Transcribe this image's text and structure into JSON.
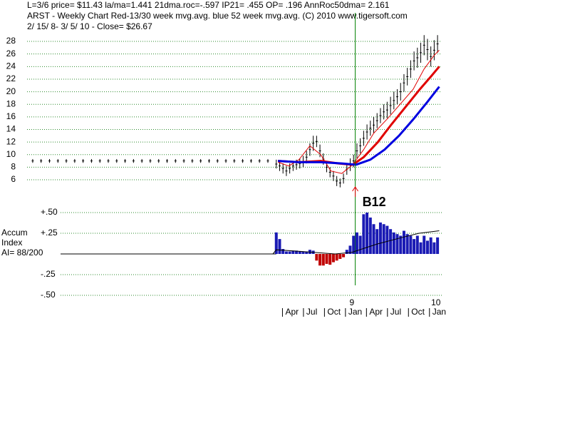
{
  "chart_data": [
    {
      "type": "ohlc",
      "header_lines": [
        "L=3/6  price= $11.43  la/ma=1.441 21dma.roc=-.597 IP21= .455 OP= .196 AnnRoc50dma= 2.161",
        "ARST  - Weekly Chart  Red-13/30 week mvg.avg.  blue 52 week mvg.avg.  (C) 2010 www.tigersoft.com",
        " 2/ 15/ 8- 3/ 5/ 10 -      Close= $26.67"
      ],
      "xlim": [
        2005.15,
        2010.07
      ],
      "ylim": [
        4,
        30
      ],
      "yticks": [
        6,
        8,
        10,
        12,
        14,
        16,
        18,
        20,
        22,
        24,
        26,
        28
      ],
      "grid": true,
      "bars": {
        "color": "#000000",
        "x": [
          2005.2,
          2005.3,
          2005.4,
          2005.5,
          2005.6,
          2005.7,
          2005.8,
          2005.9,
          2006.0,
          2006.1,
          2006.2,
          2006.3,
          2006.4,
          2006.5,
          2006.6,
          2006.7,
          2006.8,
          2006.9,
          2007.0,
          2007.1,
          2007.2,
          2007.3,
          2007.4,
          2007.5,
          2007.6,
          2007.7,
          2007.8,
          2007.9,
          2008.0,
          2008.1,
          2008.14,
          2008.18,
          2008.22,
          2008.26,
          2008.3,
          2008.34,
          2008.38,
          2008.42,
          2008.46,
          2008.5,
          2008.54,
          2008.58,
          2008.62,
          2008.66,
          2008.7,
          2008.74,
          2008.78,
          2008.82,
          2008.86,
          2008.9,
          2008.94,
          2008.98,
          2009.02,
          2009.06,
          2009.1,
          2009.14,
          2009.18,
          2009.22,
          2009.26,
          2009.3,
          2009.34,
          2009.38,
          2009.42,
          2009.46,
          2009.5,
          2009.54,
          2009.58,
          2009.62,
          2009.66,
          2009.7,
          2009.74,
          2009.78,
          2009.82,
          2009.86,
          2009.9,
          2009.94,
          2009.98,
          2010.02
        ],
        "high": [
          9.3,
          9.3,
          9.3,
          9.3,
          9.3,
          9.3,
          9.3,
          9.3,
          9.3,
          9.3,
          9.3,
          9.3,
          9.3,
          9.3,
          9.3,
          9.3,
          9.3,
          9.3,
          9.3,
          9.3,
          9.3,
          9.3,
          9.3,
          9.3,
          9.3,
          9.3,
          9.3,
          9.3,
          9.3,
          9.2,
          9.0,
          8.6,
          8.2,
          8.6,
          9.0,
          9.2,
          9.4,
          9.8,
          10.6,
          11.8,
          13.0,
          13.0,
          11.6,
          10.2,
          8.8,
          8.0,
          7.4,
          6.6,
          6.2,
          7.0,
          8.6,
          9.4,
          10.0,
          11.8,
          12.6,
          13.8,
          14.8,
          15.4,
          16.0,
          16.6,
          17.4,
          18.0,
          18.4,
          19.2,
          20.0,
          20.4,
          21.4,
          22.8,
          23.8,
          25.0,
          26.4,
          27.0,
          27.8,
          29.0,
          28.4,
          27.2,
          28.2,
          29.0
        ],
        "low": [
          8.7,
          8.7,
          8.7,
          8.7,
          8.7,
          8.7,
          8.7,
          8.7,
          8.7,
          8.7,
          8.7,
          8.7,
          8.7,
          8.7,
          8.7,
          8.7,
          8.7,
          8.7,
          8.7,
          8.7,
          8.7,
          8.7,
          8.7,
          8.7,
          8.7,
          8.7,
          8.7,
          8.7,
          8.7,
          7.8,
          7.4,
          7.0,
          6.6,
          7.0,
          7.4,
          7.6,
          7.8,
          8.0,
          8.6,
          9.8,
          10.6,
          11.2,
          9.6,
          8.4,
          7.2,
          6.4,
          5.8,
          5.0,
          4.8,
          5.4,
          6.8,
          7.4,
          8.0,
          9.4,
          10.2,
          11.4,
          12.4,
          13.0,
          13.4,
          14.2,
          15.0,
          15.6,
          15.8,
          16.4,
          17.2,
          18.0,
          18.6,
          20.0,
          21.0,
          22.2,
          23.4,
          23.8,
          24.6,
          25.8,
          25.0,
          24.0,
          25.0,
          26.2
        ]
      },
      "lines": [
        {
          "color": "#e00000",
          "width": 1,
          "x": [
            2008.12,
            2008.25,
            2008.37,
            2008.5,
            2008.63,
            2008.75,
            2008.88,
            2009.01,
            2009.14,
            2009.26,
            2009.43,
            2009.6,
            2009.73,
            2009.86,
            2009.98,
            2010.04
          ],
          "values": [
            8.8,
            8.2,
            9.2,
            11.4,
            10.0,
            7.4,
            7.0,
            8.4,
            10.8,
            13.4,
            15.8,
            18.4,
            20.4,
            23.6,
            25.8,
            26.6
          ]
        },
        {
          "color": "#e00000",
          "width": 3,
          "x": [
            2008.12,
            2008.37,
            2008.63,
            2008.84,
            2009.01,
            2009.14,
            2009.31,
            2009.47,
            2009.64,
            2009.81,
            2009.94,
            2010.04
          ],
          "values": [
            9.0,
            8.8,
            9.0,
            8.6,
            8.4,
            9.6,
            12.0,
            14.8,
            17.6,
            20.4,
            22.4,
            24.0
          ]
        },
        {
          "color": "#0000e0",
          "width": 3,
          "x": [
            2008.12,
            2008.37,
            2008.63,
            2008.88,
            2009.05,
            2009.22,
            2009.39,
            2009.56,
            2009.73,
            2009.9,
            2010.04
          ],
          "values": [
            9.0,
            8.8,
            8.8,
            8.6,
            8.4,
            9.2,
            10.8,
            13.0,
            15.6,
            18.4,
            20.8
          ]
        }
      ],
      "signals": [
        {
          "x": 2009.04,
          "label": "B12",
          "color": "#008000",
          "arrow_color": "#e00000"
        }
      ]
    },
    {
      "type": "histogram",
      "labels": [
        "Accum",
        "Index",
        "AI= 88/200"
      ],
      "xlim": [
        2005.15,
        2010.07
      ],
      "ylim": [
        -0.5,
        0.5
      ],
      "yticks": [
        {
          "value": 0.5,
          "label": "+.50"
        },
        {
          "value": 0.25,
          "label": "+.25"
        },
        {
          "value": -0.25,
          "label": "-.25"
        },
        {
          "value": -0.5,
          "label": "-.50"
        }
      ],
      "grid": true,
      "pos_color": "#1a1ab4",
      "neg_color": "#c00000",
      "x": [
        2008.1,
        2008.14,
        2008.18,
        2008.22,
        2008.26,
        2008.3,
        2008.34,
        2008.38,
        2008.42,
        2008.46,
        2008.5,
        2008.54,
        2008.58,
        2008.62,
        2008.66,
        2008.7,
        2008.74,
        2008.78,
        2008.82,
        2008.86,
        2008.9,
        2008.94,
        2008.98,
        2009.02,
        2009.06,
        2009.1,
        2009.14,
        2009.18,
        2009.22,
        2009.26,
        2009.3,
        2009.34,
        2009.38,
        2009.42,
        2009.46,
        2009.5,
        2009.54,
        2009.58,
        2009.62,
        2009.66,
        2009.7,
        2009.74,
        2009.78,
        2009.82,
        2009.86,
        2009.9,
        2009.94,
        2009.98,
        2010.02
      ],
      "values": [
        0.26,
        0.18,
        0.06,
        0.03,
        0.03,
        0.04,
        0.04,
        0.03,
        0.03,
        0.03,
        0.05,
        0.04,
        -0.08,
        -0.14,
        -0.14,
        -0.12,
        -0.13,
        -0.1,
        -0.08,
        -0.06,
        -0.04,
        0.05,
        0.1,
        0.22,
        0.26,
        0.22,
        0.48,
        0.5,
        0.44,
        0.36,
        0.3,
        0.38,
        0.36,
        0.34,
        0.3,
        0.26,
        0.24,
        0.22,
        0.28,
        0.24,
        0.22,
        0.18,
        0.22,
        0.14,
        0.22,
        0.16,
        0.2,
        0.14,
        0.2
      ],
      "line": {
        "color": "#000000",
        "x": [
          2005.55,
          2008.06,
          2008.1,
          2008.4,
          2008.8,
          2009.0,
          2009.3,
          2009.6,
          2009.8,
          2010.04
        ],
        "values": [
          0,
          0,
          0.05,
          0.03,
          0.0,
          0.02,
          0.12,
          0.2,
          0.25,
          0.28
        ]
      },
      "xticks": [
        {
          "value": 2008.25,
          "label": "Apr"
        },
        {
          "value": 2008.5,
          "label": "Jul"
        },
        {
          "value": 2008.75,
          "label": "Oct"
        },
        {
          "value": 2009.0,
          "label": "Jan"
        },
        {
          "value": 2009.25,
          "label": "Apr"
        },
        {
          "value": 2009.5,
          "label": "Jul"
        },
        {
          "value": 2009.75,
          "label": "Oct"
        },
        {
          "value": 2010.0,
          "label": "Jan"
        }
      ],
      "year_ticks": [
        {
          "value": 2009,
          "label": "9"
        },
        {
          "value": 2010,
          "label": "10"
        }
      ]
    }
  ]
}
